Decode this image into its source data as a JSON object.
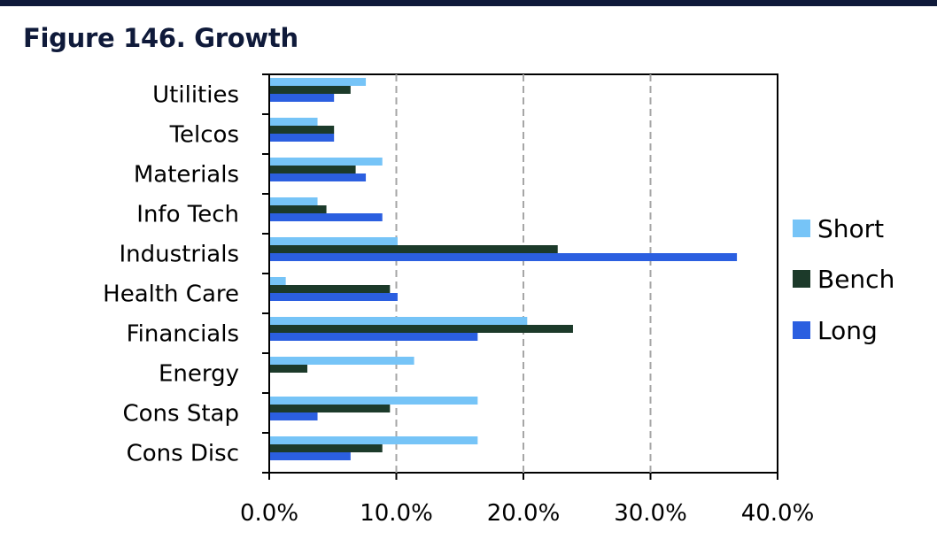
{
  "header": {
    "title": "Figure 146. Growth"
  },
  "colors": {
    "short": "#76c4f7",
    "bench": "#1c3a2a",
    "long": "#2b5fe0",
    "grid": "#a6a6a6",
    "title": "#0f1a3a"
  },
  "chart_data": {
    "type": "bar",
    "orientation": "horizontal",
    "title": "Figure 146. Growth",
    "xlabel": "",
    "ylabel": "",
    "xlim": [
      0,
      40
    ],
    "xticks": [
      "0.0%",
      "10.0%",
      "20.0%",
      "30.0%",
      "40.0%"
    ],
    "grid": "vertical dashed",
    "legend_position": "right",
    "categories": [
      "Utilities",
      "Telcos",
      "Materials",
      "Info Tech",
      "Industrials",
      "Health Care",
      "Financials",
      "Energy",
      "Cons Stap",
      "Cons Disc"
    ],
    "series": [
      {
        "name": "Short",
        "values": [
          7.6,
          3.8,
          8.9,
          3.8,
          10.1,
          1.3,
          20.3,
          11.4,
          16.4,
          16.4
        ]
      },
      {
        "name": "Bench",
        "values": [
          6.4,
          5.1,
          6.8,
          4.5,
          22.7,
          9.5,
          23.9,
          3.0,
          9.5,
          8.9
        ]
      },
      {
        "name": "Long",
        "values": [
          5.1,
          5.1,
          7.6,
          8.9,
          36.8,
          10.1,
          16.4,
          0.0,
          3.8,
          6.4
        ]
      }
    ]
  }
}
